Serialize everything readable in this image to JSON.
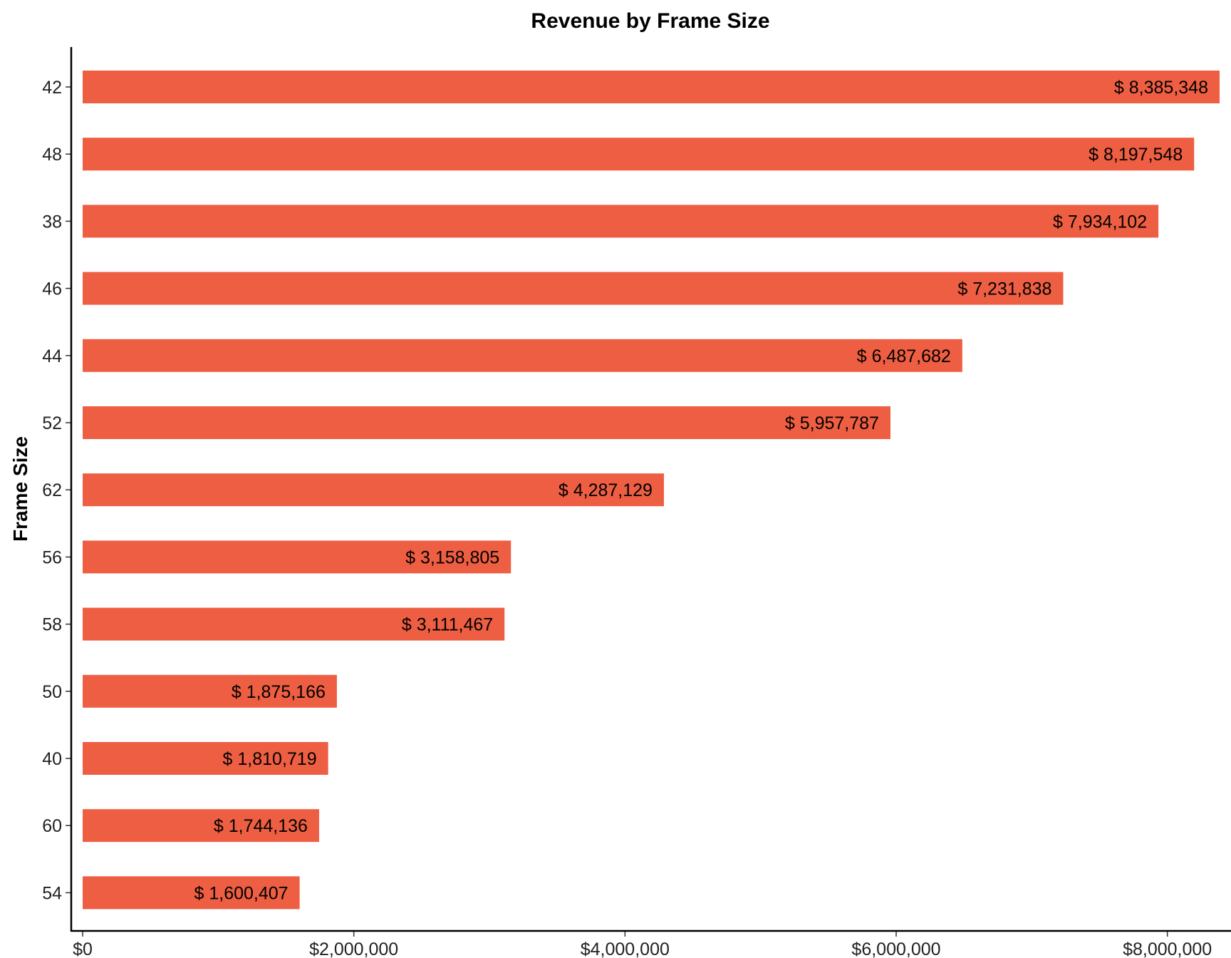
{
  "chart_data": {
    "type": "bar",
    "orientation": "horizontal",
    "title": "Revenue by Frame Size",
    "xlabel": "",
    "ylabel": "Frame Size",
    "categories": [
      "42",
      "48",
      "38",
      "46",
      "44",
      "52",
      "62",
      "56",
      "58",
      "50",
      "40",
      "60",
      "54"
    ],
    "values": [
      8385348,
      8197548,
      7934102,
      7231838,
      6487682,
      5957787,
      4287129,
      3158805,
      3111467,
      1875166,
      1810719,
      1744136,
      1600407
    ],
    "data_labels": [
      "$ 8,385,348",
      "$ 8,197,548",
      "$ 7,934,102",
      "$ 7,231,838",
      "$ 6,487,682",
      "$ 5,957,787",
      "$ 4,287,129",
      "$ 3,158,805",
      "$ 3,111,467",
      "$ 1,875,166",
      "$ 1,810,719",
      "$ 1,744,136",
      "$ 1,600,407"
    ],
    "xlim": [
      0,
      8385348
    ],
    "x_ticks": [
      0,
      2000000,
      4000000,
      6000000,
      8000000
    ],
    "x_tick_labels": [
      "$0",
      "$2,000,000",
      "$4,000,000",
      "$6,000,000",
      "$8,000,000"
    ],
    "bar_color": "#EE5E42",
    "grid": false,
    "legend": "none"
  }
}
